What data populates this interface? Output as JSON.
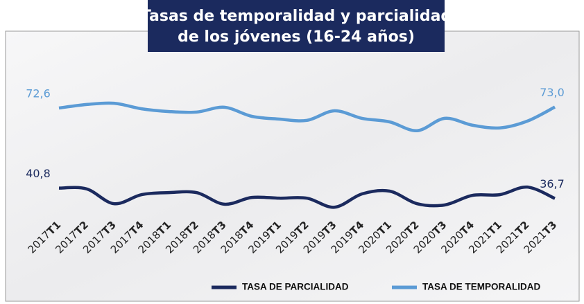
{
  "chart_data": {
    "type": "line",
    "title": [
      "Tasas de temporalidad y parcialidad",
      "de los jóvenes (16-24 años)"
    ],
    "categories": [
      "2017T1",
      "2017T2",
      "2017T3",
      "2017T4",
      "2018T1",
      "2018T2",
      "2018T3",
      "2018T4",
      "2019T1",
      "2019T2",
      "2019T3",
      "2019T4",
      "2020T1",
      "2020T2",
      "2020T3",
      "2020T4",
      "2021T1",
      "2021T2",
      "2021T3"
    ],
    "series": [
      {
        "name": "TASA DE PARCIALIDAD",
        "color": "#1b2a5e",
        "values": [
          40.8,
          40.5,
          34.6,
          38.2,
          39.0,
          39.0,
          34.4,
          37.1,
          36.8,
          36.8,
          33.2,
          38.5,
          39.6,
          34.6,
          34.1,
          37.9,
          38.2,
          41.2,
          36.7
        ],
        "value_labels": [
          "40,8",
          null,
          null,
          null,
          null,
          null,
          null,
          null,
          null,
          null,
          null,
          null,
          null,
          null,
          null,
          null,
          null,
          null,
          "36,7"
        ]
      },
      {
        "name": "TASA DE TEMPORALIDAD",
        "color": "#5b9bd5",
        "values": [
          72.6,
          74.0,
          74.5,
          72.3,
          71.2,
          71.0,
          72.9,
          69.3,
          68.2,
          67.7,
          71.5,
          68.5,
          67.1,
          63.6,
          68.5,
          65.8,
          64.7,
          67.4,
          73.0
        ],
        "value_labels": [
          "72,6",
          null,
          null,
          null,
          null,
          null,
          null,
          null,
          null,
          null,
          null,
          null,
          null,
          null,
          null,
          null,
          null,
          null,
          "73,0"
        ]
      }
    ],
    "ylim": [
      33,
      88
    ]
  }
}
